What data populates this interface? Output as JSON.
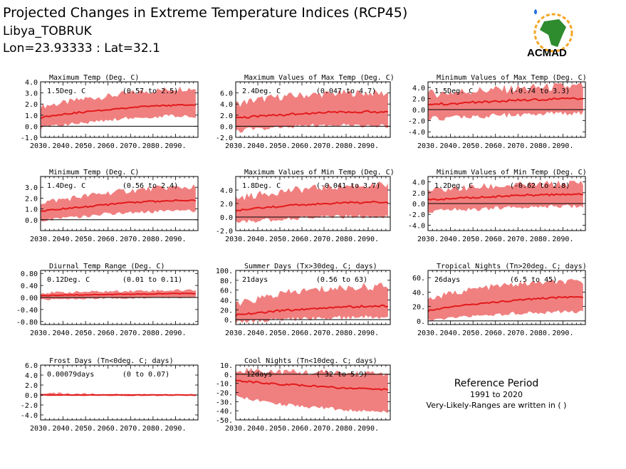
{
  "header": {
    "title": "Projected Changes in Extreme Temperature Indices (RCP45)",
    "location": "Libya_TOBRUK",
    "coords": "Lon=23.93333 : Lat=32.1"
  },
  "logo": {
    "text": "ACMAD",
    "icon": "africa-map-logo-icon"
  },
  "reference": {
    "title": "Reference Period",
    "period": "1991 to 2020",
    "note": "Very-Likely-Ranges are written in ( )"
  },
  "colors": {
    "band": "#f08080",
    "line": "#e31a1c",
    "zero": "#000000",
    "ref_title": "#e31a1c"
  },
  "chart_data": [
    {
      "type": "area",
      "title": "Maximum Temp (Deg. C)",
      "value_text": "1.5Deg. C",
      "range_text": "(0.57 to 2.5)",
      "ylim": [
        -1.0,
        4.0
      ],
      "yticks": [
        -1.0,
        0.0,
        1.0,
        2.0,
        3.0,
        4.0
      ],
      "ytick_labels": [
        "-1.0",
        "0.0",
        "1.0",
        "2.0",
        "3.0",
        "4.0"
      ],
      "x": [
        2030,
        2040,
        2050,
        2060,
        2070,
        2080,
        2090,
        2099
      ],
      "median": [
        0.8,
        1.1,
        1.3,
        1.5,
        1.7,
        1.8,
        1.9,
        1.9
      ],
      "lower": [
        0.0,
        0.3,
        0.5,
        0.7,
        0.9,
        1.0,
        1.1,
        1.0
      ],
      "upper": [
        1.8,
        2.1,
        2.5,
        2.7,
        3.0,
        3.2,
        3.4,
        3.4
      ],
      "noise": 0.4
    },
    {
      "type": "area",
      "title": "Maximum Values of Max Temp (Deg. C)",
      "value_text": "2.4Deg. C",
      "range_text": "(0.047 to 4.7)",
      "ylim": [
        -2.0,
        8.0
      ],
      "yticks": [
        -2.0,
        0.0,
        2.0,
        4.0,
        6.0
      ],
      "ytick_labels": [
        "-2.0",
        "0.0",
        "2.0",
        "4.0",
        "6.0"
      ],
      "x": [
        2030,
        2040,
        2050,
        2060,
        2070,
        2080,
        2090,
        2099
      ],
      "median": [
        1.5,
        1.8,
        2.0,
        2.3,
        2.5,
        2.6,
        2.6,
        2.5
      ],
      "lower": [
        -0.5,
        0.0,
        0.2,
        0.4,
        0.5,
        0.6,
        0.5,
        0.4
      ],
      "upper": [
        4.0,
        4.8,
        5.3,
        5.6,
        5.8,
        6.0,
        6.0,
        5.9
      ],
      "noise": 1.0
    },
    {
      "type": "area",
      "title": "Minimum Values of Max Temp (Deg. C)",
      "value_text": "1.5Deg. C",
      "range_text": "(-0.74 to 3.3)",
      "ylim": [
        -5.0,
        5.0
      ],
      "yticks": [
        -4.0,
        -2.0,
        0.0,
        2.0,
        4.0
      ],
      "ytick_labels": [
        "-4.0",
        "-2.0",
        "0.0",
        "2.0",
        "4.0"
      ],
      "x": [
        2030,
        2040,
        2050,
        2060,
        2070,
        2080,
        2090,
        2099
      ],
      "median": [
        0.9,
        1.1,
        1.3,
        1.5,
        1.7,
        1.8,
        1.9,
        2.0
      ],
      "lower": [
        -1.2,
        -1.0,
        -0.8,
        -0.6,
        -0.5,
        -0.4,
        -0.3,
        -0.3
      ],
      "upper": [
        2.8,
        3.1,
        3.4,
        3.6,
        3.8,
        4.0,
        4.1,
        4.2
      ],
      "noise": 1.2
    },
    {
      "type": "area",
      "title": "Minimum Temp (Deg. C)",
      "value_text": "1.4Deg. C",
      "range_text": "(0.56 to 2.4)",
      "ylim": [
        -1.0,
        4.0
      ],
      "yticks": [
        0.0,
        1.0,
        2.0,
        3.0
      ],
      "ytick_labels": [
        "0.0",
        "1.0",
        "2.0",
        "3.0"
      ],
      "x": [
        2030,
        2040,
        2050,
        2060,
        2070,
        2080,
        2090,
        2099
      ],
      "median": [
        0.8,
        1.0,
        1.2,
        1.4,
        1.6,
        1.7,
        1.8,
        1.8
      ],
      "lower": [
        0.1,
        0.3,
        0.5,
        0.7,
        0.8,
        0.9,
        1.0,
        1.0
      ],
      "upper": [
        1.6,
        1.9,
        2.2,
        2.5,
        2.7,
        2.9,
        3.0,
        3.0
      ],
      "noise": 0.4
    },
    {
      "type": "area",
      "title": "Maximum Values of Min Temp (Deg. C)",
      "value_text": "1.8Deg. C",
      "range_text": "(-0.041 to 3.7)",
      "ylim": [
        -2.0,
        6.0
      ],
      "yticks": [
        -2.0,
        0.0,
        2.0,
        4.0
      ],
      "ytick_labels": [
        "-2.0",
        "0.0",
        "2.0",
        "4.0"
      ],
      "x": [
        2030,
        2040,
        2050,
        2060,
        2070,
        2080,
        2090,
        2099
      ],
      "median": [
        1.0,
        1.3,
        1.6,
        1.8,
        2.0,
        2.1,
        2.2,
        2.2
      ],
      "lower": [
        -0.5,
        -0.2,
        0.0,
        0.2,
        0.3,
        0.4,
        0.4,
        0.4
      ],
      "upper": [
        2.8,
        3.3,
        3.8,
        4.1,
        4.4,
        4.6,
        4.7,
        4.7
      ],
      "noise": 0.8
    },
    {
      "type": "area",
      "title": "Minimum Values of Min Temp (Deg. C)",
      "value_text": "1.2Deg. C",
      "range_text": "(-0.62 to 2.8)",
      "ylim": [
        -5.0,
        5.0
      ],
      "yticks": [
        -4.0,
        -2.0,
        0.0,
        2.0,
        4.0
      ],
      "ytick_labels": [
        "-4.0",
        "-2.0",
        "0.0",
        "2.0",
        "4.0"
      ],
      "x": [
        2030,
        2040,
        2050,
        2060,
        2070,
        2080,
        2090,
        2099
      ],
      "median": [
        0.7,
        0.9,
        1.1,
        1.3,
        1.5,
        1.6,
        1.7,
        1.8
      ],
      "lower": [
        -1.0,
        -0.8,
        -0.6,
        -0.5,
        -0.3,
        -0.2,
        -0.1,
        0.0
      ],
      "upper": [
        2.3,
        2.7,
        3.0,
        3.2,
        3.4,
        3.5,
        3.7,
        3.8
      ],
      "noise": 1.0
    },
    {
      "type": "area",
      "title": "Diurnal Temp Range (Deg. C)",
      "value_text": "0.12Deg. C",
      "range_text": "(0.01 to 0.11)",
      "ylim": [
        -0.9,
        0.9
      ],
      "yticks": [
        -0.8,
        -0.4,
        0.0,
        0.4,
        0.8
      ],
      "ytick_labels": [
        "-0.80",
        "-0.40",
        "0.00",
        "0.40",
        "0.80"
      ],
      "x": [
        2030,
        2040,
        2050,
        2060,
        2070,
        2080,
        2090,
        2099
      ],
      "median": [
        0.06,
        0.08,
        0.09,
        0.1,
        0.11,
        0.12,
        0.13,
        0.13
      ],
      "lower": [
        -0.05,
        -0.03,
        -0.02,
        0.0,
        0.0,
        0.01,
        0.02,
        0.02
      ],
      "upper": [
        0.15,
        0.17,
        0.19,
        0.2,
        0.22,
        0.23,
        0.24,
        0.25
      ],
      "noise": 0.06
    },
    {
      "type": "area",
      "title": "Summer Days (Tx>30deg. C; days)",
      "value_text": "21days",
      "range_text": "(0.56 to 63)",
      "ylim": [
        -10,
        100
      ],
      "yticks": [
        0,
        20,
        40,
        60,
        80,
        100
      ],
      "ytick_labels": [
        "0.",
        "20.",
        "40.",
        "60.",
        "80.",
        "100."
      ],
      "x": [
        2030,
        2040,
        2050,
        2060,
        2070,
        2080,
        2090,
        2099
      ],
      "median": [
        9,
        14,
        18,
        21,
        24,
        26,
        27,
        28
      ],
      "lower": [
        0,
        2,
        4,
        6,
        8,
        9,
        10,
        10
      ],
      "upper": [
        30,
        42,
        52,
        58,
        62,
        65,
        67,
        68
      ],
      "noise": 12
    },
    {
      "type": "area",
      "title": "Tropical Nights (Tn>20deg. C; days)",
      "value_text": "26days",
      "range_text": "(6.5 to 45)",
      "ylim": [
        -5,
        70
      ],
      "yticks": [
        0,
        20,
        40,
        60
      ],
      "ytick_labels": [
        "0.",
        "20.",
        "40.",
        "60."
      ],
      "x": [
        2030,
        2040,
        2050,
        2060,
        2070,
        2080,
        2090,
        2099
      ],
      "median": [
        14,
        19,
        23,
        26,
        29,
        31,
        33,
        33
      ],
      "lower": [
        3,
        6,
        9,
        11,
        13,
        14,
        15,
        15
      ],
      "upper": [
        30,
        38,
        44,
        48,
        51,
        53,
        54,
        54
      ],
      "noise": 6
    },
    {
      "type": "area",
      "title": "Frost Days (Tn<0deg. C; days)",
      "value_text": "0.00079days",
      "range_text": "(0 to 0.07)",
      "ylim": [
        -5.0,
        6.0
      ],
      "yticks": [
        -4.0,
        -2.0,
        0.0,
        2.0,
        4.0,
        6.0
      ],
      "ytick_labels": [
        "-4.0",
        "-2.0",
        "0.0",
        "2.0",
        "4.0",
        "6.0"
      ],
      "x": [
        2030,
        2040,
        2050,
        2060,
        2070,
        2080,
        2090,
        2099
      ],
      "median": [
        0,
        0,
        0,
        0,
        0,
        0,
        0,
        0
      ],
      "lower": [
        0,
        0,
        0,
        0,
        0,
        0,
        0,
        0
      ],
      "upper": [
        0.4,
        0.3,
        0.2,
        0.1,
        0.05,
        0.02,
        0.01,
        0.0
      ],
      "noise": 0.3
    },
    {
      "type": "area",
      "title": "Cool Nights (Tn<10deg. C; days)",
      "value_text": "-12days",
      "range_text": "(-32 to 5.9)",
      "ylim": [
        -50,
        10
      ],
      "yticks": [
        -50,
        -40,
        -30,
        -20,
        -10,
        0,
        10
      ],
      "ytick_labels": [
        "-50.",
        "-40.",
        "-30.",
        "-20.",
        "-10.",
        "0.",
        "10."
      ],
      "x": [
        2030,
        2040,
        2050,
        2060,
        2070,
        2080,
        2090,
        2099
      ],
      "median": [
        -7,
        -9,
        -11,
        -12,
        -14,
        -15,
        -16,
        -17
      ],
      "lower": [
        -22,
        -27,
        -31,
        -33,
        -35,
        -37,
        -38,
        -39
      ],
      "upper": [
        5,
        4,
        3,
        2,
        2,
        1,
        1,
        1
      ],
      "noise": 5
    }
  ],
  "xtick_labels": [
    "2030.",
    "2040.",
    "2050.",
    "2060.",
    "2070.",
    "2080.",
    "2090."
  ]
}
